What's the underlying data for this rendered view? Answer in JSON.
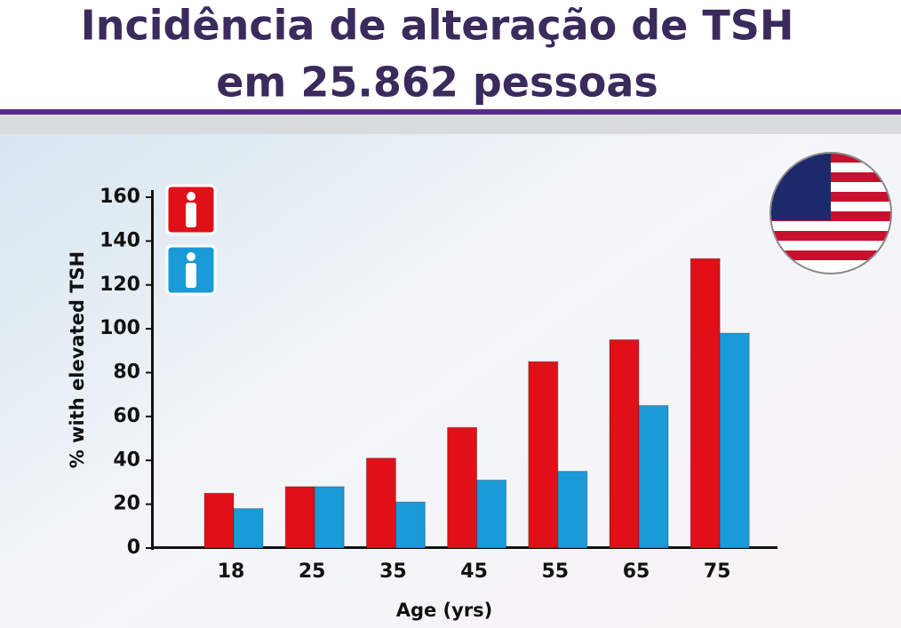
{
  "chart_data": {
    "type": "bar",
    "title": [
      "Incidência de alteração de TSH",
      "em 25.862 pessoas"
    ],
    "y_label": "% with elevated TSH",
    "x_label": "Age (yrs)",
    "categories": [
      "18",
      "25",
      "35",
      "45",
      "55",
      "65",
      "75"
    ],
    "series": [
      {
        "color": "#e01018",
        "values": [
          25,
          28,
          41,
          55,
          85,
          95,
          132
        ]
      },
      {
        "color": "#1a9ad6",
        "values": [
          18,
          28,
          21,
          31,
          35,
          65,
          98
        ]
      }
    ],
    "ylim": [
      0,
      160
    ],
    "yticks": [
      0,
      20,
      40,
      60,
      80,
      100,
      120,
      140,
      160
    ]
  }
}
